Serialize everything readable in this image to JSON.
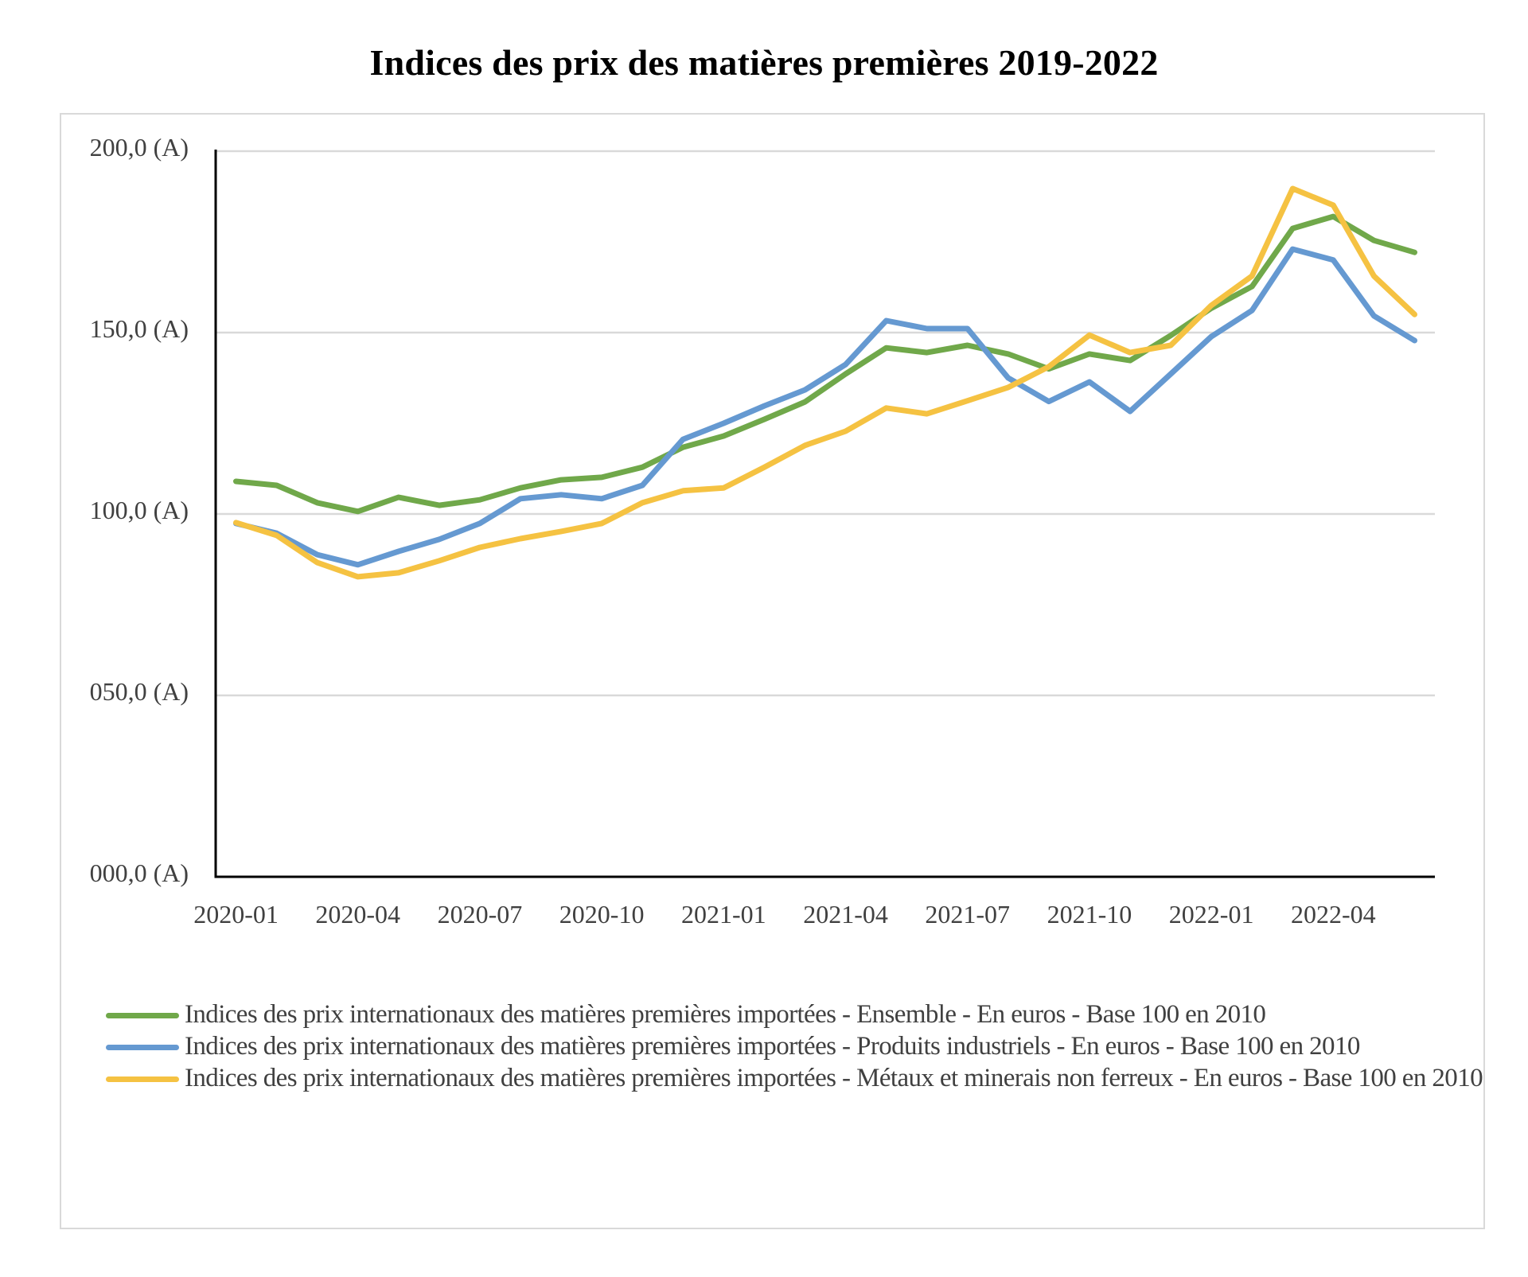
{
  "chart_data": {
    "type": "line",
    "title": "Indices des prix des matières premières 2019-2022",
    "xlabel": "",
    "ylabel": "",
    "ylim": [
      0,
      200
    ],
    "y_ticks": [
      0,
      50,
      100,
      150,
      200
    ],
    "y_tick_labels": [
      "000,0 (A)",
      "050,0 (A)",
      "100,0 (A)",
      "150,0 (A)",
      "200,0 (A)"
    ],
    "grid": true,
    "legend_position": "bottom",
    "x": [
      "2020-01",
      "2020-02",
      "2020-03",
      "2020-04",
      "2020-05",
      "2020-06",
      "2020-07",
      "2020-08",
      "2020-09",
      "2020-10",
      "2020-11",
      "2020-12",
      "2021-01",
      "2021-02",
      "2021-03",
      "2021-04",
      "2021-05",
      "2021-06",
      "2021-07",
      "2021-08",
      "2021-09",
      "2021-10",
      "2021-11",
      "2021-12",
      "2022-01",
      "2022-02",
      "2022-03",
      "2022-04",
      "2022-05",
      "2022-06"
    ],
    "x_tick_labels": [
      "2020-01",
      "2020-04",
      "2020-07",
      "2020-10",
      "2021-01",
      "2021-04",
      "2021-07",
      "2021-10",
      "2022-01",
      "2022-04"
    ],
    "series": [
      {
        "name": "Indices des prix internationaux des matières premières importées - Ensemble - En euros - Base 100 en 2010",
        "color": "#70a84a",
        "values": [
          109.0,
          107.9,
          103.1,
          100.7,
          104.6,
          102.4,
          103.9,
          107.2,
          109.4,
          110.1,
          112.9,
          118.4,
          121.5,
          126.1,
          130.9,
          138.6,
          145.8,
          144.5,
          146.5,
          144.1,
          140.0,
          144.1,
          142.3,
          149.2,
          156.7,
          162.7,
          178.7,
          182.0,
          175.4,
          172.1
        ]
      },
      {
        "name": "Indices des prix internationaux des matières premières importées - Produits industriels - En euros - Base 100 en 2010",
        "color": "#6599d1",
        "values": [
          97.4,
          94.7,
          88.8,
          86.0,
          89.7,
          93.0,
          97.4,
          104.2,
          105.3,
          104.2,
          107.9,
          120.6,
          125.0,
          129.8,
          134.2,
          141.2,
          153.3,
          151.1,
          151.1,
          137.5,
          131.0,
          136.4,
          128.3,
          138.6,
          148.9,
          156.1,
          173.0,
          170.0,
          154.6,
          147.8
        ]
      },
      {
        "name": "Indices des prix internationaux des matières premières importées - Métaux et minerais non ferreux - En euros - Base 100 en 2010",
        "color": "#f5c242",
        "values": [
          97.6,
          94.1,
          86.6,
          82.7,
          83.8,
          87.1,
          90.8,
          93.2,
          95.2,
          97.4,
          103.1,
          106.4,
          107.2,
          112.9,
          118.9,
          122.8,
          129.2,
          127.6,
          131.2,
          134.9,
          140.6,
          149.3,
          144.5,
          146.5,
          157.5,
          165.6,
          189.7,
          185.1,
          165.6,
          155.0
        ]
      }
    ]
  }
}
